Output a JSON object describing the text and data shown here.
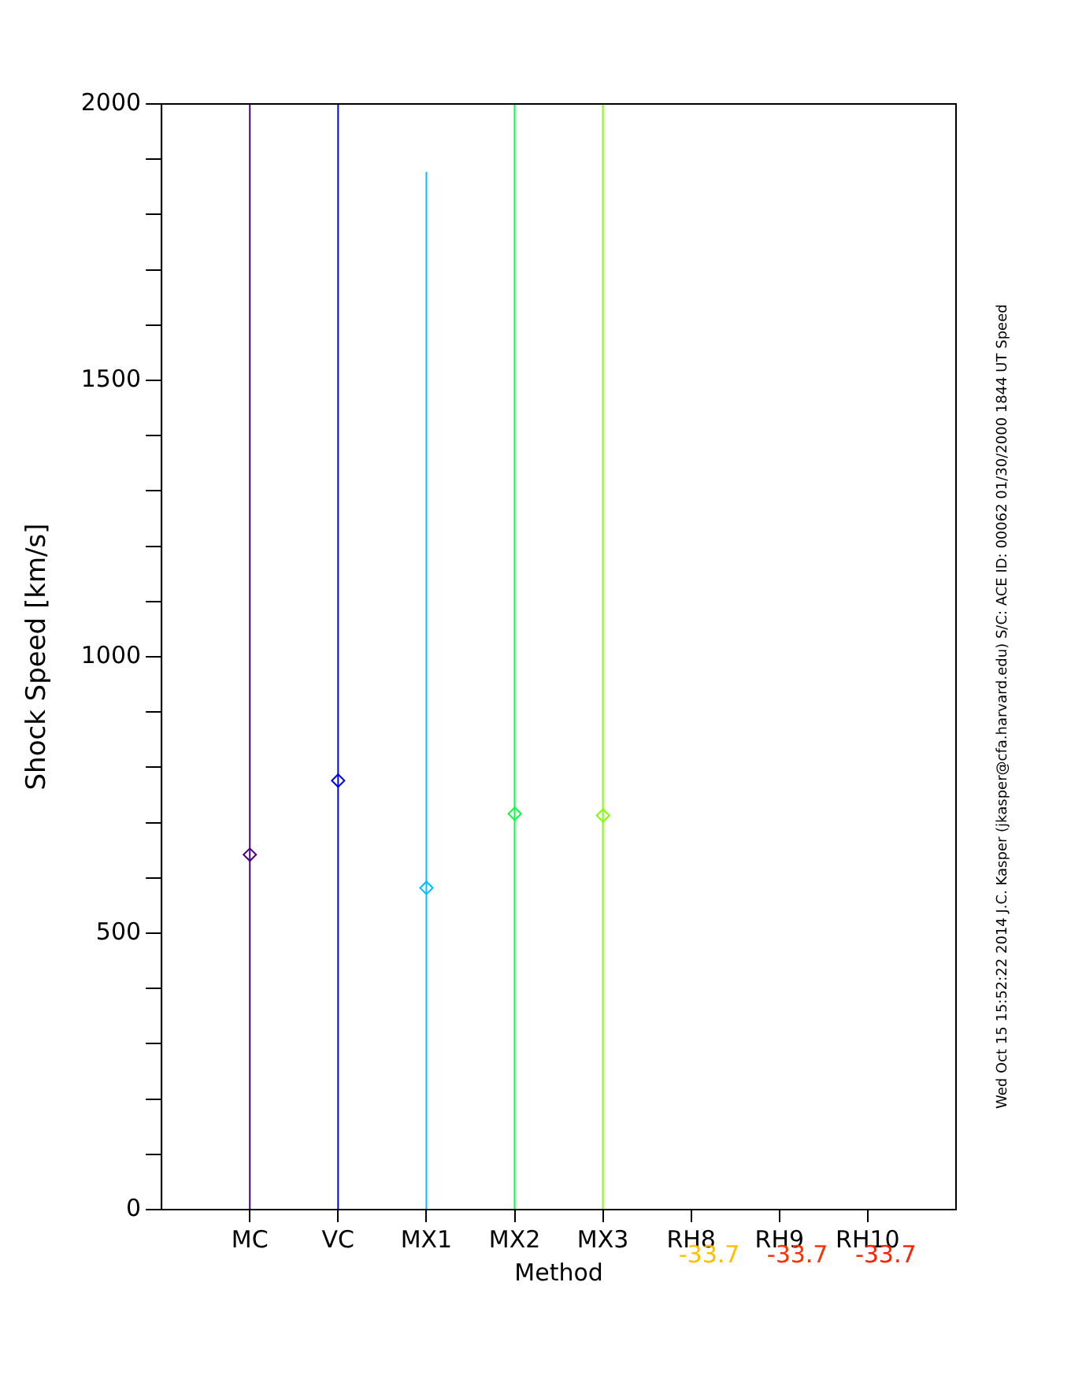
{
  "chart_data": {
    "type": "scatter",
    "xlabel": "Method",
    "ylabel": "Shock Speed [km/s]",
    "categories": [
      "MC",
      "VC",
      "MX1",
      "MX2",
      "MX3",
      "RH8",
      "RH9",
      "RH10"
    ],
    "series": [
      {
        "colors": [
          "#4b0082",
          "#0000ff",
          "#00bfff",
          "#00ff40",
          "#80ff00",
          "#ffc000",
          "#ff3000",
          "#ff2000"
        ],
        "values": [
          642,
          776,
          582,
          716,
          713,
          null,
          null,
          null
        ],
        "errors": [
          [
            0,
            2000
          ],
          [
            0,
            2000
          ],
          [
            0,
            1877
          ],
          [
            0,
            2000
          ],
          [
            0,
            2000
          ],
          null,
          null,
          null
        ]
      }
    ],
    "marker": "diamond",
    "ylim": [
      0,
      2000
    ],
    "yticks": [
      0,
      {
        "value": 100,
        "label": null
      },
      {
        "value": 200,
        "label": null
      },
      {
        "value": 300,
        "label": null
      },
      {
        "value": 400,
        "label": null
      },
      500,
      {
        "value": 600,
        "label": null
      },
      {
        "value": 700,
        "label": null
      },
      {
        "value": 800,
        "label": null
      },
      {
        "value": 900,
        "label": null
      },
      1000,
      {
        "value": 1100,
        "label": null
      },
      {
        "value": 1200,
        "label": null
      },
      {
        "value": 1300,
        "label": null
      },
      {
        "value": 1400,
        "label": null
      },
      1500,
      {
        "value": 1600,
        "label": null
      },
      {
        "value": 1700,
        "label": null
      },
      {
        "value": 1800,
        "label": null
      },
      {
        "value": 1900,
        "label": null
      },
      2000
    ],
    "grid": false,
    "legend": false,
    "annotations": [
      "-33.7",
      "-33.7",
      "-33.7",
      "Wed Oct 15 15:52:22 2014  J.C. Kasper (jkasper@cfa.harvard.edu)  S/C: ACE ID: 00062 01/30/2000  1844 UT Speed"
    ]
  }
}
